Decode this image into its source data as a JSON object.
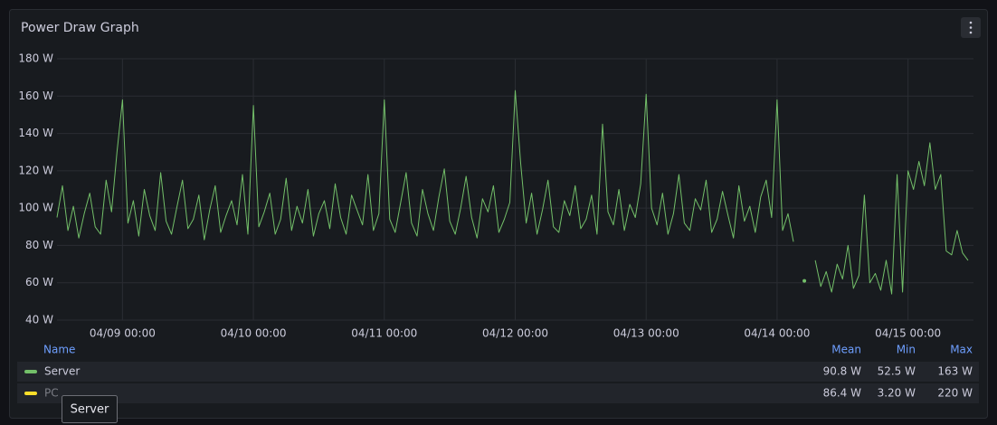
{
  "chart_data": {
    "type": "line",
    "title": "Power Draw Graph",
    "xlim": [
      "04/08 12:00",
      "04/15 12:00"
    ],
    "xticks": [
      "04/09 00:00",
      "04/10 00:00",
      "04/11 00:00",
      "04/12 00:00",
      "04/13 00:00",
      "04/14 00:00",
      "04/15 00:00"
    ],
    "ylim": [
      40,
      180
    ],
    "yticks": [
      {
        "value": 40,
        "label": "40 W"
      },
      {
        "value": 60,
        "label": "60 W"
      },
      {
        "value": 80,
        "label": "80 W"
      },
      {
        "value": 100,
        "label": "100 W"
      },
      {
        "value": 120,
        "label": "120 W"
      },
      {
        "value": 140,
        "label": "140 W"
      },
      {
        "value": 160,
        "label": "160 W"
      },
      {
        "value": 180,
        "label": "180 W"
      }
    ],
    "grid": true,
    "x": [
      "04/08 12:00",
      "04/08 13:00",
      "04/08 14:00",
      "04/08 15:00",
      "04/08 16:00",
      "04/08 17:00",
      "04/08 18:00",
      "04/08 19:00",
      "04/08 20:00",
      "04/08 21:00",
      "04/08 22:00",
      "04/08 23:00",
      "04/09 00:00",
      "04/09 01:00",
      "04/09 02:00",
      "04/09 03:00",
      "04/09 04:00",
      "04/09 05:00",
      "04/09 06:00",
      "04/09 07:00",
      "04/09 08:00",
      "04/09 09:00",
      "04/09 10:00",
      "04/09 11:00",
      "04/09 12:00",
      "04/09 13:00",
      "04/09 14:00",
      "04/09 15:00",
      "04/09 16:00",
      "04/09 17:00",
      "04/09 18:00",
      "04/09 19:00",
      "04/09 20:00",
      "04/09 21:00",
      "04/09 22:00",
      "04/09 23:00",
      "04/10 00:00",
      "04/10 01:00",
      "04/10 02:00",
      "04/10 03:00",
      "04/10 04:00",
      "04/10 05:00",
      "04/10 06:00",
      "04/10 07:00",
      "04/10 08:00",
      "04/10 09:00",
      "04/10 10:00",
      "04/10 11:00",
      "04/10 12:00",
      "04/10 13:00",
      "04/10 14:00",
      "04/10 15:00",
      "04/10 16:00",
      "04/10 17:00",
      "04/10 18:00",
      "04/10 19:00",
      "04/10 20:00",
      "04/10 21:00",
      "04/10 22:00",
      "04/10 23:00",
      "04/11 00:00",
      "04/11 01:00",
      "04/11 02:00",
      "04/11 03:00",
      "04/11 04:00",
      "04/11 05:00",
      "04/11 06:00",
      "04/11 07:00",
      "04/11 08:00",
      "04/11 09:00",
      "04/11 10:00",
      "04/11 11:00",
      "04/11 12:00",
      "04/11 13:00",
      "04/11 14:00",
      "04/11 15:00",
      "04/11 16:00",
      "04/11 17:00",
      "04/11 18:00",
      "04/11 19:00",
      "04/11 20:00",
      "04/11 21:00",
      "04/11 22:00",
      "04/11 23:00",
      "04/12 00:00",
      "04/12 01:00",
      "04/12 02:00",
      "04/12 03:00",
      "04/12 04:00",
      "04/12 05:00",
      "04/12 06:00",
      "04/12 07:00",
      "04/12 08:00",
      "04/12 09:00",
      "04/12 10:00",
      "04/12 11:00",
      "04/12 12:00",
      "04/12 13:00",
      "04/12 14:00",
      "04/12 15:00",
      "04/12 16:00",
      "04/12 17:00",
      "04/12 18:00",
      "04/12 19:00",
      "04/12 20:00",
      "04/12 21:00",
      "04/12 22:00",
      "04/12 23:00",
      "04/13 00:00",
      "04/13 01:00",
      "04/13 02:00",
      "04/13 03:00",
      "04/13 04:00",
      "04/13 05:00",
      "04/13 06:00",
      "04/13 07:00",
      "04/13 08:00",
      "04/13 09:00",
      "04/13 10:00",
      "04/13 11:00",
      "04/13 12:00",
      "04/13 13:00",
      "04/13 14:00",
      "04/13 15:00",
      "04/13 16:00",
      "04/13 17:00",
      "04/13 18:00",
      "04/13 19:00",
      "04/13 20:00",
      "04/13 21:00",
      "04/13 22:00",
      "04/13 23:00",
      "04/14 00:00",
      "04/14 01:00",
      "04/14 02:00",
      "04/14 03:00",
      "04/14 04:00",
      "04/14 05:00",
      "04/14 06:00",
      "04/14 07:00",
      "04/14 08:00",
      "04/14 09:00",
      "04/14 10:00",
      "04/14 11:00",
      "04/14 12:00",
      "04/14 13:00",
      "04/14 14:00",
      "04/14 15:00",
      "04/14 16:00",
      "04/14 17:00",
      "04/14 18:00",
      "04/14 19:00",
      "04/14 20:00",
      "04/14 21:00",
      "04/14 22:00",
      "04/14 23:00",
      "04/15 00:00",
      "04/15 01:00",
      "04/15 02:00",
      "04/15 03:00",
      "04/15 04:00",
      "04/15 05:00",
      "04/15 06:00",
      "04/15 07:00",
      "04/15 08:00",
      "04/15 09:00",
      "04/15 10:00",
      "04/15 11:00"
    ],
    "series": [
      {
        "name": "Server",
        "color": "#73bf69",
        "values": [
          95,
          112,
          88,
          101,
          84,
          97,
          108,
          90,
          86,
          115,
          98,
          130,
          158,
          92,
          104,
          85,
          110,
          96,
          88,
          119,
          93,
          86,
          101,
          115,
          89,
          94,
          107,
          83,
          99,
          112,
          87,
          96,
          104,
          91,
          118,
          86,
          155,
          90,
          98,
          108,
          86,
          94,
          116,
          88,
          101,
          92,
          110,
          85,
          97,
          104,
          89,
          113,
          95,
          86,
          107,
          99,
          91,
          118,
          88,
          97,
          158,
          94,
          87,
          103,
          119,
          92,
          85,
          110,
          97,
          88,
          106,
          121,
          93,
          86,
          100,
          117,
          95,
          84,
          105,
          98,
          112,
          87,
          94,
          103,
          163,
          124,
          92,
          108,
          86,
          99,
          115,
          90,
          87,
          104,
          96,
          112,
          89,
          94,
          107,
          86,
          145,
          98,
          91,
          110,
          88,
          102,
          95,
          113,
          161,
          100,
          91,
          108,
          86,
          97,
          118,
          92,
          88,
          105,
          99,
          115,
          87,
          94,
          109,
          96,
          84,
          112,
          93,
          101,
          87,
          106,
          115,
          95,
          158,
          88,
          97,
          82,
          null,
          61,
          null,
          72,
          58,
          66,
          55,
          70,
          62,
          80,
          57,
          64,
          107,
          60,
          65,
          56,
          72,
          54,
          118,
          55,
          120,
          110,
          125,
          112,
          135,
          110,
          118,
          77,
          75,
          88,
          76,
          72
        ]
      }
    ],
    "legend": {
      "headers": {
        "name": "Name",
        "mean": "Mean",
        "min": "Min",
        "max": "Max"
      },
      "rows": [
        {
          "name": "Server",
          "color": "#73bf69",
          "mean": "90.8 W",
          "min": "52.5 W",
          "max": "163 W"
        },
        {
          "name": "PC",
          "color": "#fade2a",
          "mean": "86.4 W",
          "min": "3.20 W",
          "max": "220 W"
        }
      ]
    },
    "tooltip": "Server"
  }
}
